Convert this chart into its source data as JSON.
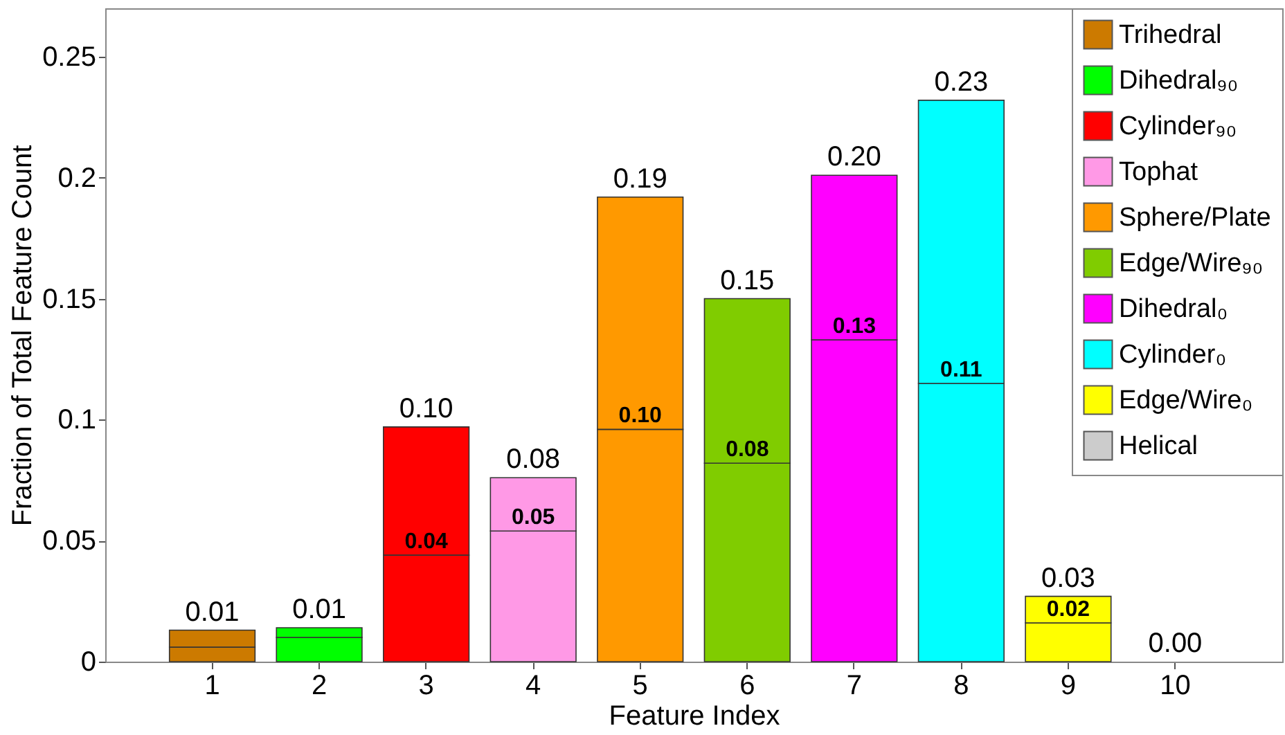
{
  "chart_data": {
    "type": "bar",
    "stacked": true,
    "xlabel": "Feature Index",
    "ylabel": "Fraction of Total Feature Count",
    "categories": [
      "1",
      "2",
      "3",
      "4",
      "5",
      "6",
      "7",
      "8",
      "9",
      "10"
    ],
    "ylim": [
      0,
      0.27
    ],
    "yticks": [
      0,
      0.05,
      0.1,
      0.15,
      0.2,
      0.25
    ],
    "grid": false,
    "legend": "top right",
    "series": [
      {
        "name": "Trihedral",
        "color": "#cc7a00",
        "values": [
          0.006,
          null,
          null,
          null,
          null,
          null,
          null,
          null,
          null,
          null
        ]
      },
      {
        "name": "Dihedral₉₀",
        "color": "#00ff00",
        "values": [
          null,
          0.01,
          null,
          null,
          null,
          null,
          null,
          null,
          null,
          null
        ]
      },
      {
        "name": "Cylinder₉₀",
        "color": "#ff0000",
        "values": [
          null,
          null,
          0.044,
          null,
          null,
          null,
          null,
          null,
          null,
          null
        ],
        "value_labels": [
          null,
          null,
          "0.04",
          null,
          null,
          null,
          null,
          null,
          null,
          null
        ]
      },
      {
        "name": "Tophat",
        "color": "#ff99e6",
        "values": [
          null,
          null,
          null,
          0.054,
          null,
          null,
          null,
          null,
          null,
          null
        ],
        "value_labels": [
          null,
          null,
          null,
          "0.05",
          null,
          null,
          null,
          null,
          null,
          null
        ]
      },
      {
        "name": "Sphere/Plate",
        "color": "#ff9900",
        "values": [
          null,
          null,
          null,
          null,
          0.096,
          null,
          null,
          null,
          null,
          null
        ],
        "value_labels": [
          null,
          null,
          null,
          null,
          "0.10",
          null,
          null,
          null,
          null,
          null
        ]
      },
      {
        "name": "Edge/Wire₉₀",
        "color": "#80cc00",
        "values": [
          null,
          null,
          null,
          null,
          null,
          0.082,
          null,
          null,
          null,
          null
        ],
        "value_labels": [
          null,
          null,
          null,
          null,
          null,
          "0.08",
          null,
          null,
          null,
          null
        ]
      },
      {
        "name": "Dihedral₀",
        "color": "#ff00ff",
        "values": [
          null,
          null,
          null,
          null,
          null,
          null,
          0.133,
          null,
          null,
          null
        ],
        "value_labels": [
          null,
          null,
          null,
          null,
          null,
          null,
          "0.13",
          null,
          null,
          null
        ]
      },
      {
        "name": "Cylinder₀",
        "color": "#00ffff",
        "values": [
          null,
          null,
          null,
          null,
          null,
          null,
          null,
          0.115,
          null,
          null
        ],
        "value_labels": [
          null,
          null,
          null,
          null,
          null,
          null,
          null,
          "0.11",
          null,
          null
        ]
      },
      {
        "name": "Edge/Wire₀",
        "color": "#ffff00",
        "values": [
          null,
          null,
          null,
          null,
          null,
          null,
          null,
          null,
          0.016,
          null
        ],
        "value_labels": [
          null,
          null,
          null,
          null,
          null,
          null,
          null,
          null,
          "0.02",
          null
        ]
      },
      {
        "name": "Helical",
        "color": "#cccccc",
        "values": [
          null,
          null,
          null,
          null,
          null,
          null,
          null,
          null,
          null,
          0
        ]
      },
      {
        "colors": [
          "#cc7a00",
          "#00ff00",
          "#ff0000",
          "#ff99e6",
          "#ff9900",
          "#80cc00",
          "#ff00ff",
          "#00ffff",
          "#ffff00",
          "#cccccc"
        ],
        "values": [
          0.007,
          0.004,
          0.053,
          0.022,
          0.096,
          0.068,
          0.068,
          0.117,
          0.011,
          0
        ]
      }
    ],
    "totals": [
      "0.01",
      "0.01",
      "0.10",
      "0.08",
      "0.19",
      "0.15",
      "0.20",
      "0.23",
      "0.03",
      "0.00"
    ]
  }
}
